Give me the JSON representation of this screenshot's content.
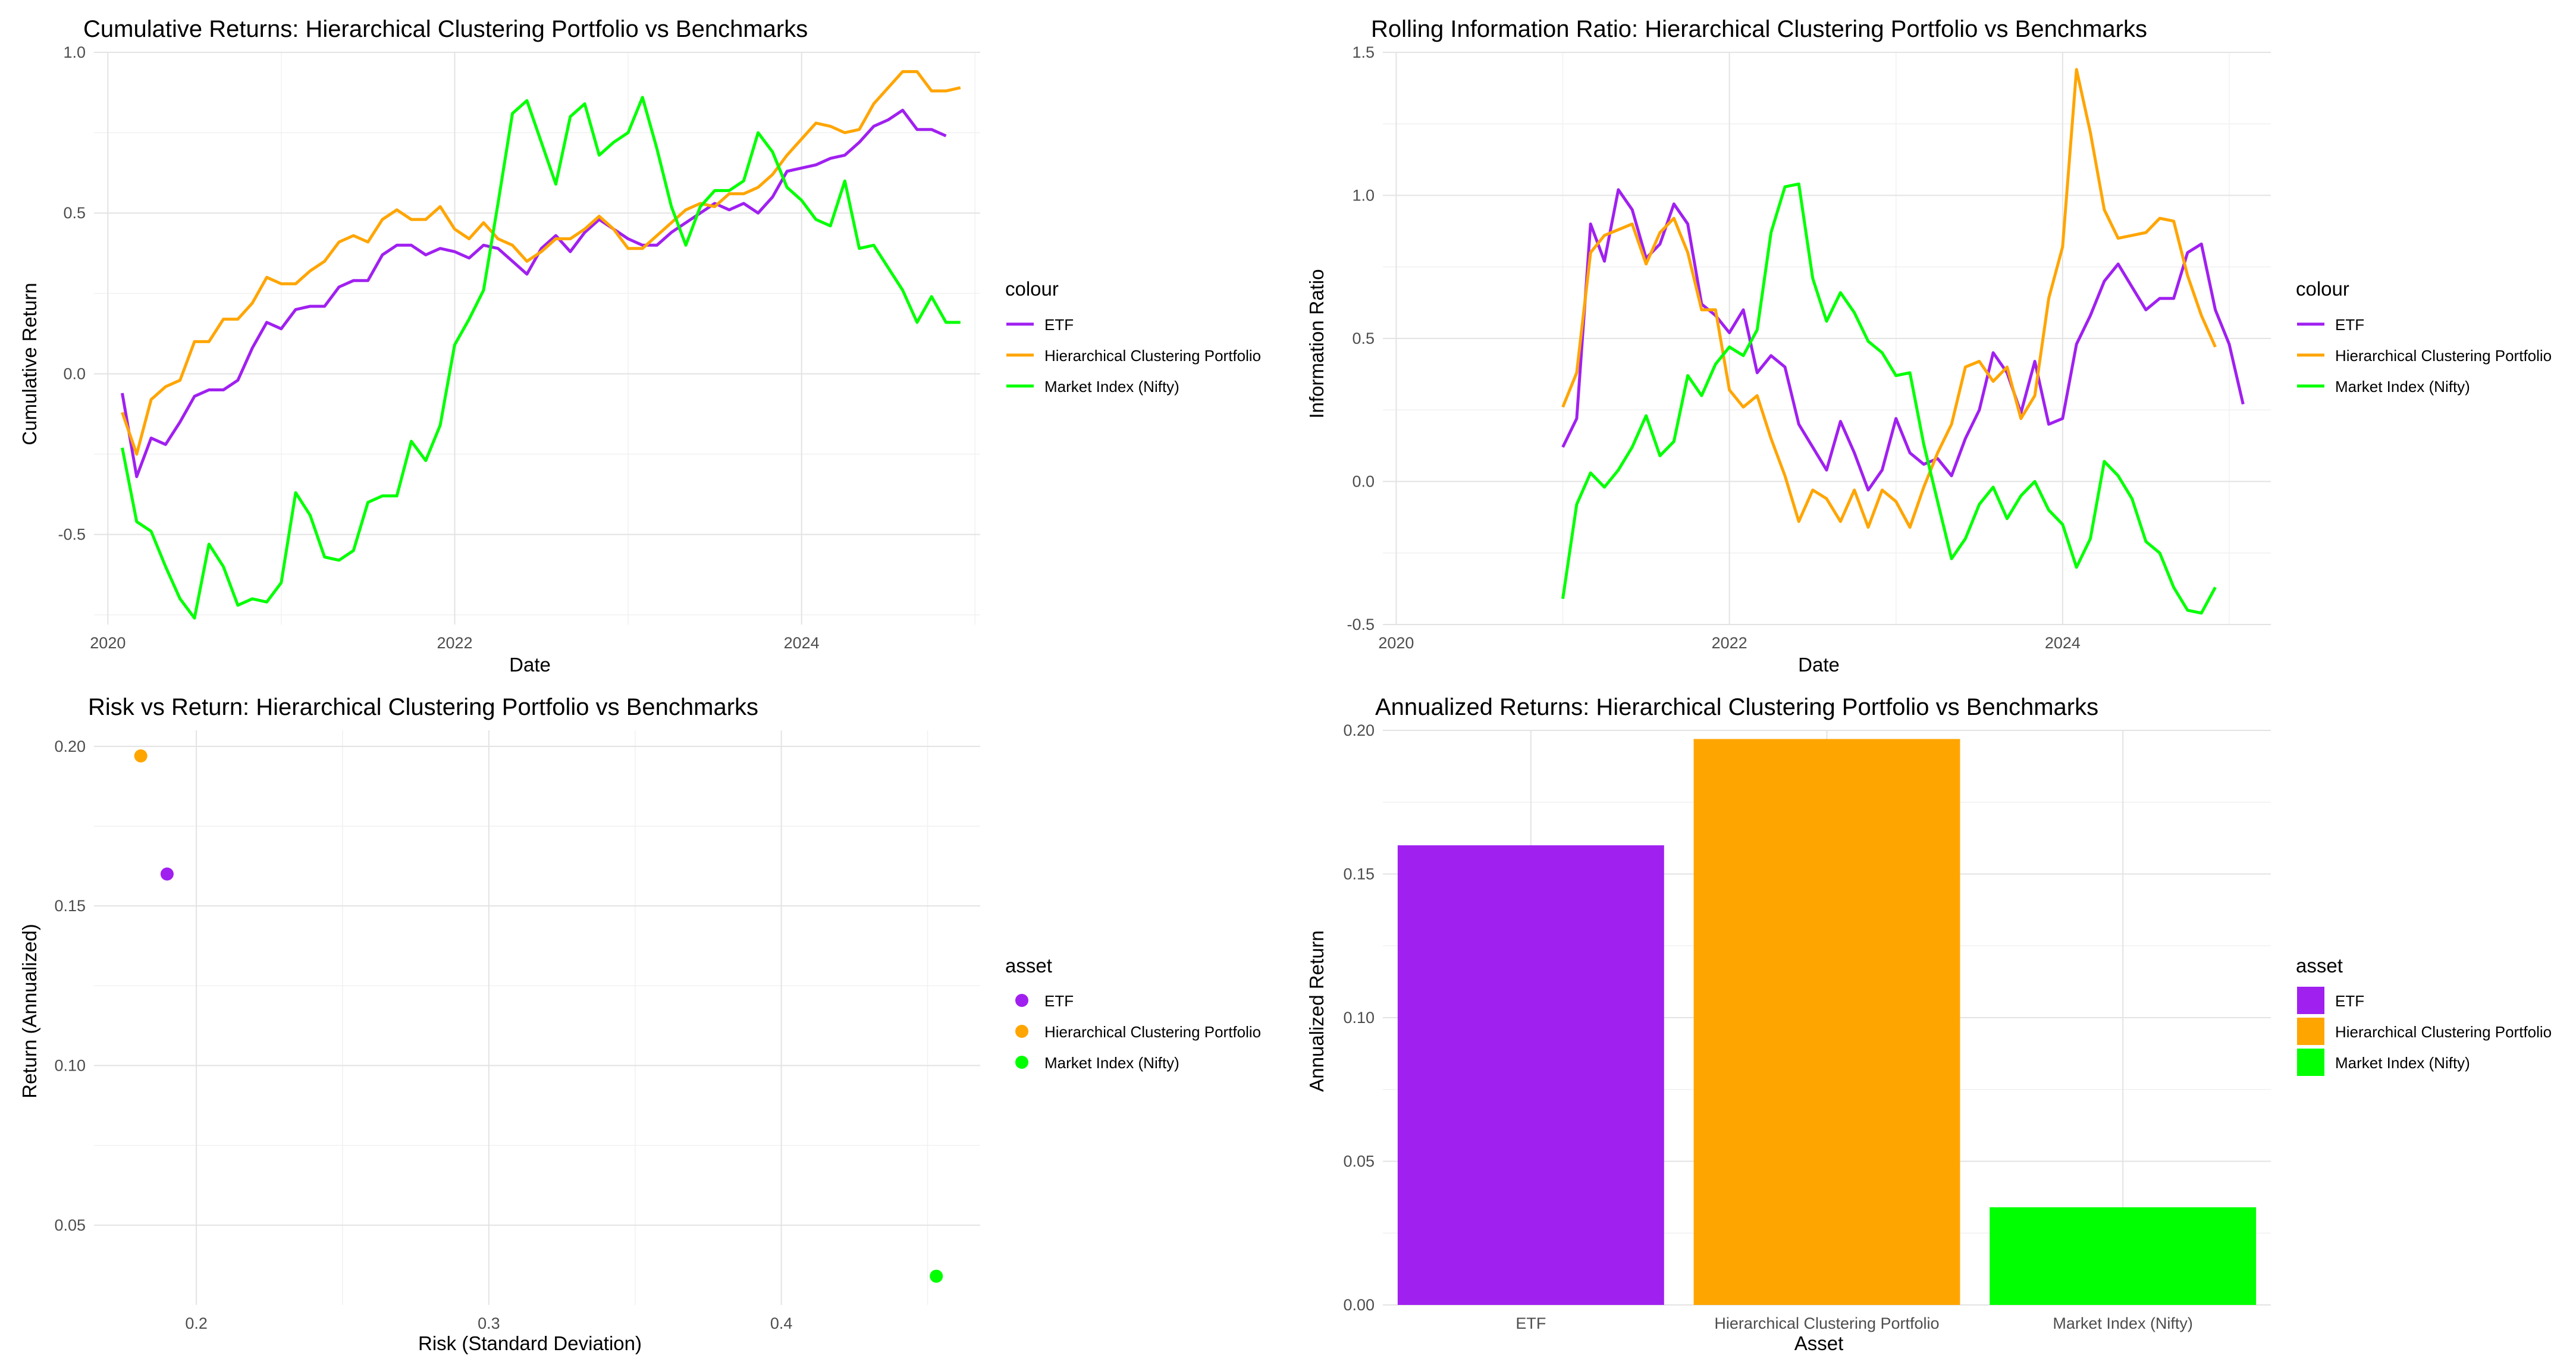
{
  "colors": {
    "ETF": "#a020f0",
    "Hierarchical Clustering Portfolio": "#ffa500",
    "Market Index (Nifty)": "#00ff00"
  },
  "chart_data": [
    {
      "id": "cumulative",
      "type": "line",
      "title": "Cumulative Returns: Hierarchical Clustering Portfolio vs Benchmarks",
      "xlabel": "Date",
      "ylabel": "Cumulative Return",
      "xlim": [
        2019.92,
        2025.03
      ],
      "ylim": [
        -0.78,
        1.0
      ],
      "x_ticks": [
        2020,
        2022,
        2024
      ],
      "x_tick_labels": [
        "2020",
        "2022",
        "2024"
      ],
      "y_ticks": [
        -0.5,
        0.0,
        0.5,
        1.0
      ],
      "y_tick_labels": [
        "-0.5",
        "0.0",
        "0.5",
        "1.0"
      ],
      "legend": {
        "title": "colour",
        "entries": [
          "ETF",
          "Hierarchical Clustering Portfolio",
          "Market Index (Nifty)"
        ],
        "position": "right"
      },
      "series": [
        {
          "name": "ETF",
          "x_start": 2020.083,
          "x_step": 0.08333,
          "values": [
            -0.06,
            -0.32,
            -0.2,
            -0.22,
            -0.15,
            -0.07,
            -0.05,
            -0.05,
            -0.02,
            0.08,
            0.16,
            0.14,
            0.2,
            0.21,
            0.21,
            0.27,
            0.29,
            0.29,
            0.37,
            0.4,
            0.4,
            0.37,
            0.39,
            0.38,
            0.36,
            0.4,
            0.39,
            0.35,
            0.31,
            0.39,
            0.43,
            0.38,
            0.44,
            0.48,
            0.45,
            0.42,
            0.4,
            0.4,
            0.44,
            0.47,
            0.5,
            0.53,
            0.51,
            0.53,
            0.5,
            0.55,
            0.63,
            0.64,
            0.65,
            0.67,
            0.68,
            0.72,
            0.77,
            0.79,
            0.82,
            0.76,
            0.76,
            0.74
          ]
        },
        {
          "name": "Hierarchical Clustering Portfolio",
          "x_start": 2020.083,
          "x_step": 0.08333,
          "values": [
            -0.12,
            -0.25,
            -0.08,
            -0.04,
            -0.02,
            0.1,
            0.1,
            0.17,
            0.17,
            0.22,
            0.3,
            0.28,
            0.28,
            0.32,
            0.35,
            0.41,
            0.43,
            0.41,
            0.48,
            0.51,
            0.48,
            0.48,
            0.52,
            0.45,
            0.42,
            0.47,
            0.42,
            0.4,
            0.35,
            0.38,
            0.42,
            0.42,
            0.45,
            0.49,
            0.45,
            0.39,
            0.39,
            0.43,
            0.47,
            0.51,
            0.53,
            0.52,
            0.56,
            0.56,
            0.58,
            0.62,
            0.68,
            0.73,
            0.78,
            0.77,
            0.75,
            0.76,
            0.84,
            0.89,
            0.94,
            0.94,
            0.88,
            0.88,
            0.89
          ]
        },
        {
          "name": "Market Index (Nifty)",
          "x_start": 2020.083,
          "x_step": 0.08333,
          "values": [
            -0.23,
            -0.46,
            -0.49,
            -0.6,
            -0.7,
            -0.76,
            -0.53,
            -0.6,
            -0.72,
            -0.7,
            -0.71,
            -0.65,
            -0.37,
            -0.44,
            -0.57,
            -0.58,
            -0.55,
            -0.4,
            -0.38,
            -0.38,
            -0.21,
            -0.27,
            -0.16,
            0.09,
            0.17,
            0.26,
            0.53,
            0.81,
            0.85,
            0.72,
            0.59,
            0.8,
            0.84,
            0.68,
            0.72,
            0.75,
            0.86,
            0.7,
            0.52,
            0.4,
            0.52,
            0.57,
            0.57,
            0.6,
            0.75,
            0.69,
            0.58,
            0.54,
            0.48,
            0.46,
            0.6,
            0.39,
            0.4,
            0.33,
            0.26,
            0.16,
            0.24,
            0.16,
            0.16
          ]
        }
      ]
    },
    {
      "id": "information_ratio",
      "type": "line",
      "title": "Rolling Information Ratio: Hierarchical Clustering Portfolio vs Benchmarks",
      "xlabel": "Date",
      "ylabel": "Information Ratio",
      "xlim": [
        2019.92,
        2025.25
      ],
      "ylim": [
        -0.5,
        1.5
      ],
      "x_ticks": [
        2020,
        2022,
        2024
      ],
      "x_tick_labels": [
        "2020",
        "2022",
        "2024"
      ],
      "y_ticks": [
        -0.5,
        0.0,
        0.5,
        1.0,
        1.5
      ],
      "y_tick_labels": [
        "-0.5",
        "0.0",
        "0.5",
        "1.0",
        "1.5"
      ],
      "legend": {
        "title": "colour",
        "entries": [
          "ETF",
          "Hierarchical Clustering Portfolio",
          "Market Index (Nifty)"
        ],
        "position": "right"
      },
      "series": [
        {
          "name": "ETF",
          "x_start": 2021.0,
          "x_step": 0.08333,
          "values": [
            0.12,
            0.22,
            0.9,
            0.77,
            1.02,
            0.95,
            0.78,
            0.83,
            0.97,
            0.9,
            0.62,
            0.58,
            0.52,
            0.6,
            0.38,
            0.44,
            0.4,
            0.2,
            0.12,
            0.04,
            0.21,
            0.1,
            -0.03,
            0.04,
            0.22,
            0.1,
            0.06,
            0.08,
            0.02,
            0.15,
            0.25,
            0.45,
            0.38,
            0.24,
            0.42,
            0.2,
            0.22,
            0.48,
            0.58,
            0.7,
            0.76,
            0.68,
            0.6,
            0.64,
            0.64,
            0.8,
            0.83,
            0.6,
            0.48,
            0.27
          ]
        },
        {
          "name": "Hierarchical Clustering Portfolio",
          "x_start": 2021.0,
          "x_step": 0.08333,
          "values": [
            0.26,
            0.38,
            0.8,
            0.86,
            0.88,
            0.9,
            0.76,
            0.87,
            0.92,
            0.8,
            0.6,
            0.6,
            0.32,
            0.26,
            0.3,
            0.15,
            0.02,
            -0.14,
            -0.03,
            -0.06,
            -0.14,
            -0.03,
            -0.16,
            -0.03,
            -0.07,
            -0.16,
            -0.02,
            0.1,
            0.2,
            0.4,
            0.42,
            0.35,
            0.4,
            0.22,
            0.3,
            0.64,
            0.82,
            1.44,
            1.22,
            0.95,
            0.85,
            0.86,
            0.87,
            0.92,
            0.91,
            0.72,
            0.58,
            0.47
          ]
        },
        {
          "name": "Market Index (Nifty)",
          "x_start": 2021.0,
          "x_step": 0.08333,
          "values": [
            -0.41,
            -0.08,
            0.03,
            -0.02,
            0.04,
            0.12,
            0.23,
            0.09,
            0.14,
            0.37,
            0.3,
            0.41,
            0.47,
            0.44,
            0.53,
            0.87,
            1.03,
            1.04,
            0.71,
            0.56,
            0.66,
            0.59,
            0.49,
            0.45,
            0.37,
            0.38,
            0.13,
            -0.07,
            -0.27,
            -0.2,
            -0.08,
            -0.02,
            -0.13,
            -0.05,
            0.0,
            -0.1,
            -0.15,
            -0.3,
            -0.2,
            0.07,
            0.02,
            -0.06,
            -0.21,
            -0.25,
            -0.37,
            -0.45,
            -0.46,
            -0.37
          ]
        }
      ]
    },
    {
      "id": "risk_return",
      "type": "scatter",
      "title": "Risk vs Return: Hierarchical Clustering Portfolio vs Benchmarks",
      "xlabel": "Risk (Standard Deviation)",
      "ylabel": "Return (Annualized)",
      "xlim": [
        0.165,
        0.468
      ],
      "ylim": [
        0.025,
        0.205
      ],
      "x_ticks": [
        0.2,
        0.3,
        0.4
      ],
      "x_tick_labels": [
        "0.2",
        "0.3",
        "0.4"
      ],
      "y_ticks": [
        0.05,
        0.1,
        0.15,
        0.2
      ],
      "y_tick_labels": [
        "0.05",
        "0.10",
        "0.15",
        "0.20"
      ],
      "legend": {
        "title": "asset",
        "entries": [
          "ETF",
          "Hierarchical Clustering Portfolio",
          "Market Index (Nifty)"
        ],
        "position": "right"
      },
      "points": [
        {
          "name": "ETF",
          "x": 0.19,
          "y": 0.16
        },
        {
          "name": "Hierarchical Clustering Portfolio",
          "x": 0.181,
          "y": 0.197
        },
        {
          "name": "Market Index (Nifty)",
          "x": 0.453,
          "y": 0.034
        }
      ]
    },
    {
      "id": "annualized",
      "type": "bar",
      "title": "Annualized Returns: Hierarchical Clustering Portfolio vs Benchmarks",
      "xlabel": "Asset",
      "ylabel": "Annualized Return",
      "categories": [
        "ETF",
        "Hierarchical Clustering Portfolio",
        "Market Index (Nifty)"
      ],
      "values": [
        0.16,
        0.197,
        0.034
      ],
      "ylim": [
        0.0,
        0.2
      ],
      "y_ticks": [
        0.0,
        0.05,
        0.1,
        0.15,
        0.2
      ],
      "y_tick_labels": [
        "0.00",
        "0.05",
        "0.10",
        "0.15",
        "0.20"
      ],
      "legend": {
        "title": "asset",
        "entries": [
          "ETF",
          "Hierarchical Clustering Portfolio",
          "Market Index (Nifty)"
        ],
        "position": "right"
      }
    }
  ]
}
